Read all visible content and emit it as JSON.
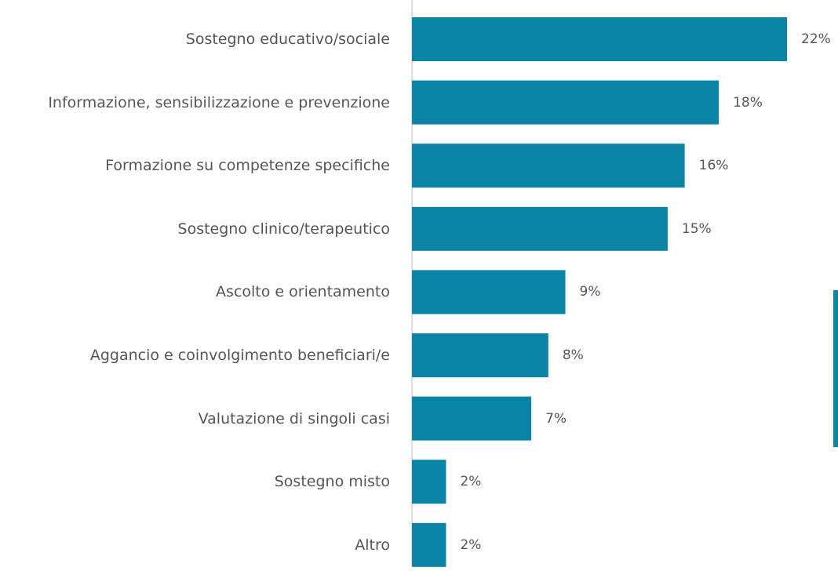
{
  "chart_data": {
    "type": "bar",
    "orientation": "horizontal",
    "categories": [
      "Sostegno educativo/sociale",
      "Informazione, sensibilizzazione e prevenzione",
      "Formazione su competenze specifiche",
      "Sostegno clinico/terapeutico",
      "Ascolto e orientamento",
      "Aggancio e coinvolgimento beneficiari/e",
      "Valutazione di singoli casi",
      "Sostegno misto",
      "Altro"
    ],
    "values": [
      22,
      18,
      16,
      15,
      9,
      8,
      7,
      2,
      2
    ],
    "value_labels": [
      "22%",
      "18%",
      "16%",
      "15%",
      "9%",
      "8%",
      "7%",
      "2%",
      "2%"
    ],
    "color": "#0b84a5"
  }
}
